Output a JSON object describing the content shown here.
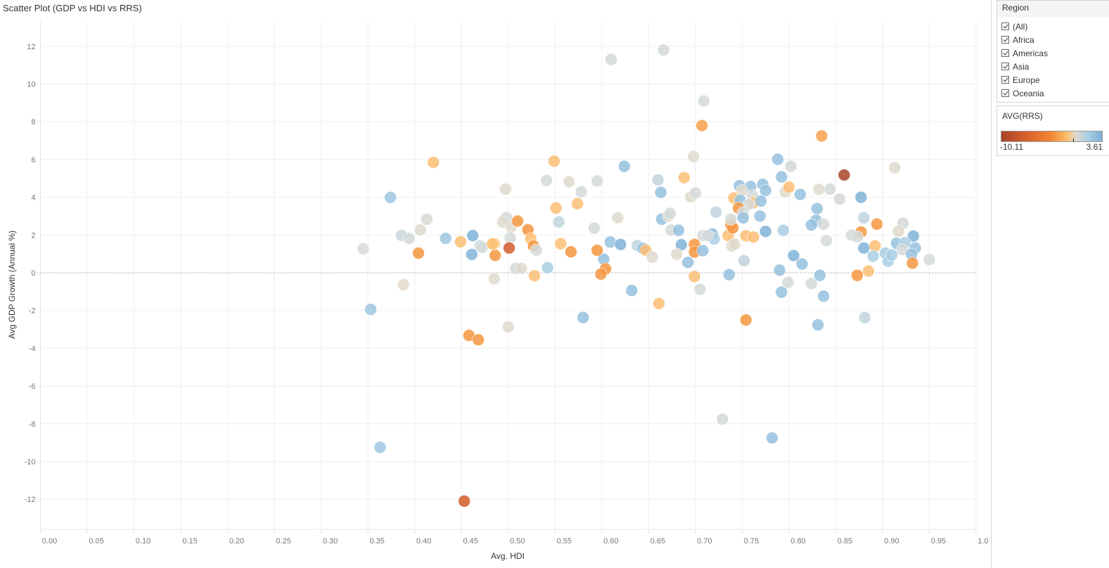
{
  "title": "Scatter Plot (GDP vs HDI vs RRS)",
  "filter": {
    "title": "Region",
    "options": [
      {
        "label": "(All)",
        "checked": true
      },
      {
        "label": "Africa",
        "checked": true
      },
      {
        "label": "Americas",
        "checked": true
      },
      {
        "label": "Asia",
        "checked": true
      },
      {
        "label": "Europe",
        "checked": true
      },
      {
        "label": "Oceania",
        "checked": true
      }
    ]
  },
  "legend": {
    "title": "AVG(RRS)",
    "min": "-10.11",
    "max": "3.61",
    "colors": {
      "min": "#a8432a",
      "mid": "#ddd9cf",
      "max": "#7cb0d6"
    }
  },
  "chart_data": {
    "type": "scatter",
    "title": "Scatter Plot (GDP vs HDI vs RRS)",
    "xlabel": "Avg. HDI",
    "ylabel": "Avg GDP Growth (Annual %)",
    "color_by": "AVG(RRS)",
    "xlim": [
      0,
      1.0
    ],
    "ylim": [
      -13.6,
      13.3
    ],
    "xticks": [
      "0.00",
      "0.05",
      "0.10",
      "0.15",
      "0.20",
      "0.25",
      "0.30",
      "0.35",
      "0.40",
      "0.45",
      "0.50",
      "0.55",
      "0.60",
      "0.65",
      "0.70",
      "0.75",
      "0.80",
      "0.85",
      "0.90",
      "0.95",
      "1.00"
    ],
    "yticks": [
      "-12",
      "-10",
      "-8",
      "-6",
      "-4",
      "-2",
      "0",
      "2",
      "4",
      "6",
      "8",
      "10",
      "12"
    ],
    "grid": true,
    "zero_line": "dotted",
    "legend_placement": "right",
    "points": [
      [
        0.549,
        5.91,
        -1.5
      ],
      [
        0.624,
        5.64,
        3.0
      ],
      [
        0.698,
        6.16,
        0.3
      ],
      [
        0.788,
        6.01,
        3.0
      ],
      [
        0.802,
        5.64,
        1.2
      ],
      [
        0.913,
        5.56,
        0.3
      ],
      [
        0.859,
        5.18,
        -10.0
      ],
      [
        0.541,
        4.89,
        1.2
      ],
      [
        0.565,
        4.82,
        0.3
      ],
      [
        0.595,
        4.86,
        1.2
      ],
      [
        0.497,
        4.43,
        0.3
      ],
      [
        0.578,
        4.29,
        1.2
      ],
      [
        0.66,
        4.92,
        1.8
      ],
      [
        0.663,
        4.26,
        3.0
      ],
      [
        0.688,
        5.04,
        -1.5
      ],
      [
        0.695,
        4.02,
        0.3
      ],
      [
        0.7,
        4.23,
        1.2
      ],
      [
        0.792,
        5.08,
        3.0
      ],
      [
        0.796,
        4.29,
        0.3
      ],
      [
        0.8,
        4.54,
        -1.5
      ],
      [
        0.747,
        4.61,
        3.0
      ],
      [
        0.759,
        4.57,
        3.0
      ],
      [
        0.772,
        4.69,
        3.0
      ],
      [
        0.775,
        4.36,
        3.0
      ],
      [
        0.75,
        4.36,
        0.3
      ],
      [
        0.741,
        3.96,
        -1.5
      ],
      [
        0.748,
        3.84,
        3.0
      ],
      [
        0.761,
        4.09,
        1.2
      ],
      [
        0.762,
        3.71,
        -1.5
      ],
      [
        0.757,
        3.62,
        1.2
      ],
      [
        0.77,
        3.8,
        3.0
      ],
      [
        0.746,
        3.43,
        -3.5
      ],
      [
        0.751,
        3.18,
        1.2
      ],
      [
        0.751,
        2.91,
        3.0
      ],
      [
        0.769,
        3.0,
        3.0
      ],
      [
        0.812,
        4.15,
        3.0
      ],
      [
        0.832,
        4.42,
        0.3
      ],
      [
        0.844,
        4.43,
        1.2
      ],
      [
        0.854,
        3.9,
        1.2
      ],
      [
        0.877,
        4.0,
        3.5
      ],
      [
        0.83,
        3.4,
        3.0
      ],
      [
        0.829,
        2.78,
        3.0
      ],
      [
        0.824,
        2.53,
        3.0
      ],
      [
        0.837,
        2.57,
        1.2
      ],
      [
        0.88,
        2.91,
        1.8
      ],
      [
        0.894,
        2.58,
        -3.5
      ],
      [
        0.922,
        2.62,
        1.2
      ],
      [
        0.917,
        2.2,
        0.3
      ],
      [
        0.877,
        2.16,
        -3.5
      ],
      [
        0.867,
        2.0,
        1.2
      ],
      [
        0.873,
        1.91,
        1.2
      ],
      [
        0.933,
        1.94,
        3.5
      ],
      [
        0.88,
        1.31,
        3.5
      ],
      [
        0.892,
        1.42,
        -1.5
      ],
      [
        0.89,
        0.88,
        2.5
      ],
      [
        0.915,
        1.56,
        3.0
      ],
      [
        0.924,
        1.6,
        2.5
      ],
      [
        0.921,
        1.23,
        1.2
      ],
      [
        0.935,
        1.31,
        3.0
      ],
      [
        0.931,
        0.98,
        3.0
      ],
      [
        0.903,
        1.04,
        2.5
      ],
      [
        0.906,
        0.61,
        2.5
      ],
      [
        0.91,
        0.94,
        2.5
      ],
      [
        0.932,
        0.51,
        -3.5
      ],
      [
        0.95,
        0.7,
        1.2
      ],
      [
        0.873,
        -0.14,
        -3.5
      ],
      [
        0.885,
        0.09,
        -1.5
      ],
      [
        0.881,
        -2.38,
        1.8
      ],
      [
        0.831,
        -2.76,
        3.0
      ],
      [
        0.837,
        -1.24,
        3.0
      ],
      [
        0.833,
        -0.14,
        3.0
      ],
      [
        0.824,
        -0.57,
        1.2
      ],
      [
        0.84,
        1.7,
        1.2
      ],
      [
        0.814,
        0.46,
        3.0
      ],
      [
        0.805,
        0.91,
        3.5
      ],
      [
        0.79,
        0.14,
        3.0
      ],
      [
        0.792,
        -1.03,
        3.0
      ],
      [
        0.799,
        -0.51,
        1.2
      ],
      [
        0.794,
        2.25,
        2.5
      ],
      [
        0.775,
        2.19,
        3.5
      ],
      [
        0.754,
        1.96,
        -1.5
      ],
      [
        0.762,
        1.89,
        -1.5
      ],
      [
        0.735,
        1.97,
        -1.5
      ],
      [
        0.738,
        2.53,
        -3.5
      ],
      [
        0.74,
        2.38,
        -3.5
      ],
      [
        0.738,
        2.84,
        1.2
      ],
      [
        0.739,
        1.42,
        0.3
      ],
      [
        0.742,
        1.52,
        0.3
      ],
      [
        0.752,
        0.64,
        1.8
      ],
      [
        0.754,
        -2.5,
        -3.5
      ],
      [
        0.736,
        -0.1,
        3.0
      ],
      [
        0.718,
        2.06,
        3.0
      ],
      [
        0.72,
        1.79,
        2.5
      ],
      [
        0.708,
        1.97,
        1.2
      ],
      [
        0.713,
        1.97,
        1.2
      ],
      [
        0.722,
        3.21,
        1.8
      ],
      [
        0.674,
        2.26,
        1.2
      ],
      [
        0.682,
        2.25,
        3.0
      ],
      [
        0.664,
        2.84,
        3.0
      ],
      [
        0.671,
        3.0,
        0.3
      ],
      [
        0.673,
        3.15,
        1.2
      ],
      [
        0.685,
        1.48,
        3.5
      ],
      [
        0.699,
        1.5,
        -3.5
      ],
      [
        0.699,
        1.1,
        -3.5
      ],
      [
        0.708,
        1.17,
        3.0
      ],
      [
        0.68,
        0.98,
        0.3
      ],
      [
        0.692,
        0.55,
        3.0
      ],
      [
        0.699,
        -0.2,
        -1.5
      ],
      [
        0.705,
        -0.88,
        1.2
      ],
      [
        0.661,
        -1.63,
        -1.5
      ],
      [
        0.632,
        -0.94,
        3.0
      ],
      [
        0.58,
        -2.37,
        3.0
      ],
      [
        0.5,
        -2.87,
        0.3
      ],
      [
        0.609,
        1.63,
        3.0
      ],
      [
        0.62,
        1.5,
        3.5
      ],
      [
        0.638,
        1.44,
        1.8
      ],
      [
        0.644,
        1.29,
        3.0
      ],
      [
        0.647,
        1.2,
        -1.5
      ],
      [
        0.654,
        0.83,
        0.3
      ],
      [
        0.602,
        0.72,
        3.0
      ],
      [
        0.604,
        0.21,
        -3.5
      ],
      [
        0.599,
        -0.07,
        -3.5
      ],
      [
        0.595,
        1.19,
        -3.5
      ],
      [
        0.592,
        2.37,
        1.2
      ],
      [
        0.617,
        2.92,
        0.3
      ],
      [
        0.574,
        3.66,
        -1.5
      ],
      [
        0.551,
        3.43,
        -1.5
      ],
      [
        0.554,
        2.69,
        1.8
      ],
      [
        0.556,
        1.54,
        -1.5
      ],
      [
        0.567,
        1.11,
        -3.5
      ],
      [
        0.542,
        0.27,
        2.5
      ],
      [
        0.528,
        -0.16,
        -1.5
      ],
      [
        0.508,
        0.23,
        1.2
      ],
      [
        0.514,
        0.23,
        0.3
      ],
      [
        0.485,
        -0.32,
        0.3
      ],
      [
        0.498,
        2.93,
        1.2
      ],
      [
        0.494,
        2.69,
        0.3
      ],
      [
        0.503,
        2.43,
        0.3
      ],
      [
        0.51,
        2.74,
        -3.5
      ],
      [
        0.521,
        2.28,
        -3.5
      ],
      [
        0.524,
        1.81,
        -1.5
      ],
      [
        0.502,
        1.85,
        1.2
      ],
      [
        0.501,
        1.31,
        -7.0
      ],
      [
        0.527,
        1.42,
        -3.5
      ],
      [
        0.53,
        1.2,
        1.2
      ],
      [
        0.485,
        1.54,
        -1.5
      ],
      [
        0.486,
        0.92,
        -3.5
      ],
      [
        0.374,
        3.99,
        2.8
      ],
      [
        0.386,
        1.98,
        1.5
      ],
      [
        0.394,
        1.82,
        1.2
      ],
      [
        0.406,
        2.27,
        0.3
      ],
      [
        0.413,
        2.83,
        0.8
      ],
      [
        0.345,
        1.27,
        1.0
      ],
      [
        0.404,
        1.04,
        -3.5
      ],
      [
        0.388,
        -0.63,
        0.0
      ],
      [
        0.353,
        -1.94,
        2.8
      ],
      [
        0.433,
        1.82,
        2.8
      ],
      [
        0.449,
        1.64,
        -1.5
      ],
      [
        0.462,
        1.97,
        3.5
      ],
      [
        0.461,
        0.97,
        3.5
      ],
      [
        0.47,
        1.42,
        1.8
      ],
      [
        0.472,
        1.34,
        1.2
      ],
      [
        0.483,
        1.53,
        -1.5
      ],
      [
        0.42,
        5.85,
        -1.5
      ],
      [
        0.363,
        -9.25,
        2.8
      ],
      [
        0.458,
        -3.32,
        -3.5
      ],
      [
        0.468,
        -3.55,
        -3.5
      ],
      [
        0.453,
        -12.1,
        -7.0
      ],
      [
        0.61,
        11.3,
        1.2
      ],
      [
        0.666,
        11.8,
        1.2
      ],
      [
        0.709,
        9.1,
        1.2
      ],
      [
        0.707,
        7.8,
        -3.0
      ],
      [
        0.835,
        7.25,
        -3.0
      ],
      [
        0.729,
        -7.75,
        1.2
      ],
      [
        0.782,
        -8.75,
        3.0
      ]
    ]
  }
}
